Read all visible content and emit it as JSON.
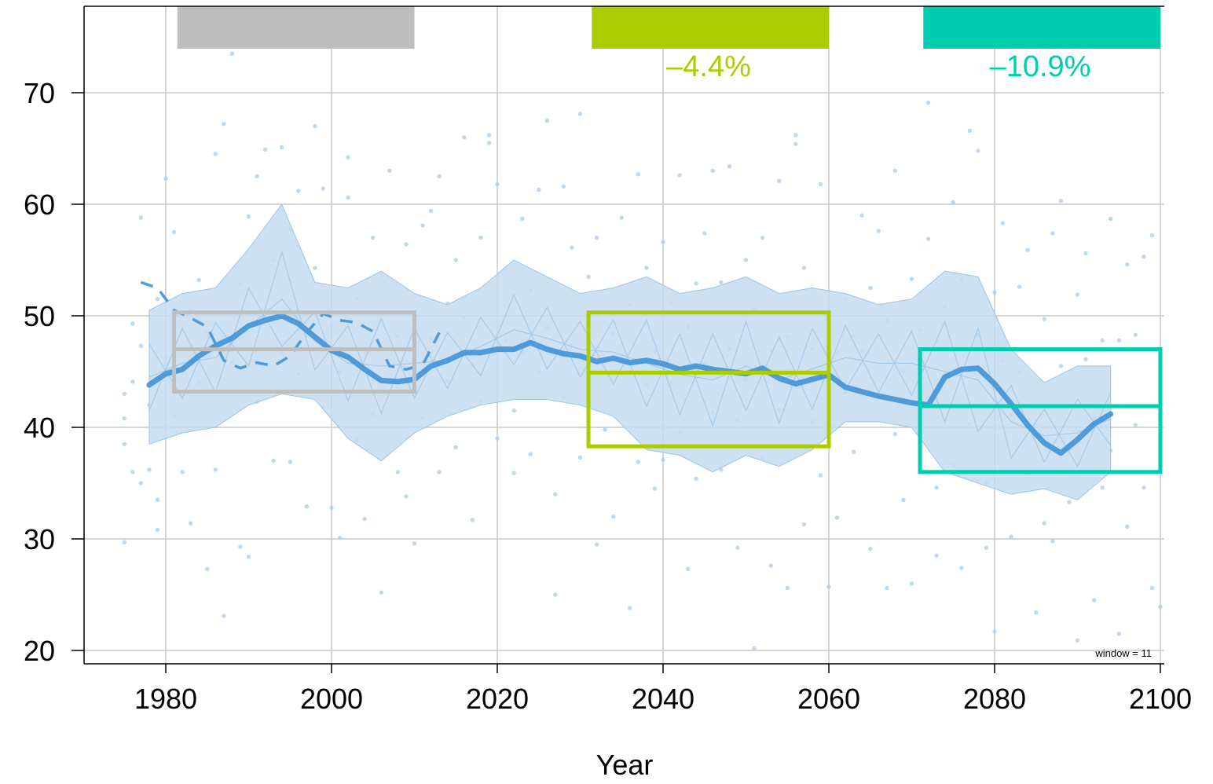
{
  "chart_data": {
    "type": "line",
    "xlabel": "Year",
    "ylabel": "",
    "xlim": [
      1970,
      2100
    ],
    "ylim": [
      19.5,
      78
    ],
    "x_ticks": [
      1980,
      2000,
      2020,
      2040,
      2060,
      2080,
      2100
    ],
    "y_ticks": [
      20,
      30,
      40,
      50,
      60,
      70
    ],
    "grid": true,
    "window_label": "window =  11",
    "colors": {
      "series": "#4f9bd9",
      "band": "#c6dcf0",
      "points": "#a9cbea",
      "baseline": "#bebebe",
      "mid_century": "#aacc00",
      "end_century": "#00cdb0"
    },
    "series": [
      {
        "role": "smoothed",
        "x": [
          1978,
          1980,
          1982,
          1984,
          1986,
          1988,
          1990,
          1992,
          1994,
          1996,
          1998,
          2000,
          2002,
          2004,
          2006,
          2008,
          2010,
          2012,
          2014,
          2016,
          2018,
          2020,
          2022,
          2024,
          2026,
          2028,
          2030,
          2032,
          2034,
          2036,
          2038,
          2040,
          2042,
          2044,
          2046,
          2048,
          2050,
          2052,
          2054,
          2056,
          2058,
          2060,
          2062,
          2064,
          2066,
          2068,
          2070,
          2072,
          2074,
          2076,
          2078,
          2080,
          2082,
          2084,
          2086,
          2088,
          2090,
          2092,
          2094
        ],
        "y": [
          43.8,
          44.8,
          45.2,
          46.4,
          47.3,
          48.0,
          49.1,
          49.6,
          50.0,
          49.3,
          48.1,
          46.9,
          46.3,
          45.2,
          44.2,
          44.1,
          44.3,
          45.5,
          46.0,
          46.7,
          46.7,
          47.0,
          47.0,
          47.6,
          47.0,
          46.6,
          46.4,
          45.9,
          46.2,
          45.8,
          46.0,
          45.7,
          45.2,
          45.5,
          45.2,
          45.0,
          44.8,
          45.3,
          44.4,
          43.9,
          44.3,
          44.7,
          43.6,
          43.2,
          42.8,
          42.5,
          42.2,
          42.0,
          44.5,
          45.2,
          45.3,
          43.9,
          42.1,
          40.2,
          38.6,
          37.7,
          38.9,
          40.3,
          41.2
        ]
      },
      {
        "role": "observed-dashed",
        "x": [
          1977,
          1979,
          1981,
          1983,
          1985,
          1987,
          1989,
          1991,
          1993,
          1995,
          1997,
          1999,
          2001,
          2003,
          2005,
          2007,
          2009,
          2011,
          2013
        ],
        "y": [
          53.0,
          52.5,
          50.5,
          49.8,
          49.0,
          46.0,
          45.3,
          45.8,
          45.5,
          46.4,
          48.5,
          50.2,
          49.6,
          49.4,
          48.6,
          45.5,
          45.2,
          45.6,
          48.5
        ]
      }
    ],
    "band": {
      "x": [
        1978,
        1982,
        1986,
        1990,
        1994,
        1998,
        2002,
        2006,
        2010,
        2014,
        2018,
        2022,
        2026,
        2030,
        2034,
        2038,
        2042,
        2046,
        2050,
        2054,
        2058,
        2062,
        2066,
        2070,
        2074,
        2078,
        2082,
        2086,
        2090,
        2094
      ],
      "upper": [
        50.5,
        52.0,
        52.5,
        56.0,
        60.0,
        53.0,
        52.5,
        54.0,
        52.0,
        51.0,
        52.5,
        55.0,
        53.5,
        52.0,
        52.5,
        53.5,
        52.0,
        52.5,
        53.5,
        52.0,
        52.5,
        52.0,
        51.0,
        51.5,
        54.0,
        53.5,
        47.0,
        44.0,
        45.5,
        45.5
      ],
      "lower": [
        38.5,
        39.5,
        40.0,
        42.0,
        43.0,
        42.5,
        39.0,
        37.0,
        39.5,
        41.0,
        42.0,
        42.5,
        42.5,
        42.0,
        41.0,
        38.0,
        37.5,
        36.0,
        37.5,
        36.5,
        38.0,
        40.5,
        40.5,
        40.0,
        36.0,
        35.0,
        34.0,
        34.5,
        33.5,
        36.0
      ]
    },
    "periods": [
      {
        "name": "baseline",
        "x_range": [
          1981,
          2010
        ],
        "y_range": [
          43.2,
          50.3
        ],
        "median": 47.0,
        "label": ""
      },
      {
        "name": "mid-century",
        "x_range": [
          2031,
          2060
        ],
        "y_range": [
          38.3,
          50.3
        ],
        "median": 44.9,
        "label": "–4.4%"
      },
      {
        "name": "end-of-century",
        "x_range": [
          2071,
          2100
        ],
        "y_range": [
          36.0,
          47.0
        ],
        "median": 41.9,
        "label": "–10.9%"
      }
    ],
    "scatter_points": [
      [
        1975,
        40.8
      ],
      [
        1975,
        43.0
      ],
      [
        1975,
        38.5
      ],
      [
        1975,
        29.7
      ],
      [
        1976,
        49.3
      ],
      [
        1976,
        44.1
      ],
      [
        1976,
        36.0
      ],
      [
        1977,
        58.8
      ],
      [
        1977,
        35.0
      ],
      [
        1977,
        47.3
      ],
      [
        1978,
        36.2
      ],
      [
        1978,
        42.0
      ],
      [
        1979,
        30.8
      ],
      [
        1979,
        51.5
      ],
      [
        1979,
        33.5
      ],
      [
        1980,
        62.3
      ],
      [
        1980,
        46.3
      ],
      [
        1981,
        57.5
      ],
      [
        1981,
        41.0
      ],
      [
        1982,
        36.0
      ],
      [
        1983,
        50.5
      ],
      [
        1983,
        31.4
      ],
      [
        1984,
        44.0
      ],
      [
        1984,
        53.2
      ],
      [
        1985,
        27.3
      ],
      [
        1985,
        48.5
      ],
      [
        1986,
        64.5
      ],
      [
        1986,
        36.2
      ],
      [
        1987,
        67.2
      ],
      [
        1987,
        23.1
      ],
      [
        1988,
        73.5
      ],
      [
        1988,
        45.8
      ],
      [
        1989,
        52.8
      ],
      [
        1989,
        29.3
      ],
      [
        1990,
        28.4
      ],
      [
        1990,
        58.9
      ],
      [
        1991,
        62.5
      ],
      [
        1991,
        42.3
      ],
      [
        1992,
        64.9
      ],
      [
        1992,
        75.8
      ],
      [
        1993,
        37.0
      ],
      [
        1993,
        55.0
      ],
      [
        1994,
        65.1
      ],
      [
        1994,
        46.6
      ],
      [
        1995,
        57.7
      ],
      [
        1995,
        36.9
      ],
      [
        1996,
        61.2
      ],
      [
        1996,
        44.8
      ],
      [
        1997,
        48.3
      ],
      [
        1997,
        32.9
      ],
      [
        1998,
        67.0
      ],
      [
        1998,
        54.3
      ],
      [
        1999,
        41.8
      ],
      [
        1999,
        61.4
      ],
      [
        2000,
        32.8
      ],
      [
        2000,
        49.2
      ],
      [
        2001,
        30.1
      ],
      [
        2001,
        45.0
      ],
      [
        2002,
        64.2
      ],
      [
        2002,
        60.6
      ],
      [
        2003,
        38.9
      ],
      [
        2003,
        51.6
      ],
      [
        2004,
        31.8
      ],
      [
        2004,
        46.7
      ],
      [
        2005,
        57.0
      ],
      [
        2005,
        41.2
      ],
      [
        2006,
        25.2
      ],
      [
        2006,
        53.7
      ],
      [
        2007,
        63.0
      ],
      [
        2007,
        44.0
      ],
      [
        2008,
        48.2
      ],
      [
        2008,
        36.0
      ],
      [
        2009,
        56.4
      ],
      [
        2009,
        33.8
      ],
      [
        2010,
        29.6
      ],
      [
        2010,
        46.1
      ],
      [
        2011,
        58.1
      ],
      [
        2011,
        40.8
      ],
      [
        2012,
        59.4
      ],
      [
        2012,
        48.0
      ],
      [
        2013,
        62.5
      ],
      [
        2013,
        36.0
      ],
      [
        2014,
        51.1
      ],
      [
        2014,
        44.2
      ],
      [
        2015,
        55.0
      ],
      [
        2015,
        38.2
      ],
      [
        2016,
        66.0
      ],
      [
        2016,
        49.8
      ],
      [
        2017,
        31.7
      ],
      [
        2017,
        45.6
      ],
      [
        2018,
        57.0
      ],
      [
        2018,
        42.4
      ],
      [
        2019,
        65.5
      ],
      [
        2019,
        66.2
      ],
      [
        2020,
        61.8
      ],
      [
        2020,
        39.0
      ],
      [
        2021,
        47.8
      ],
      [
        2021,
        54.2
      ],
      [
        2022,
        41.5
      ],
      [
        2022,
        35.9
      ],
      [
        2023,
        58.7
      ],
      [
        2023,
        46.8
      ],
      [
        2024,
        52.3
      ],
      [
        2024,
        37.6
      ],
      [
        2025,
        61.3
      ],
      [
        2025,
        44.9
      ],
      [
        2026,
        67.5
      ],
      [
        2026,
        49.0
      ],
      [
        2027,
        34.0
      ],
      [
        2027,
        25.0
      ],
      [
        2028,
        61.6
      ],
      [
        2028,
        42.7
      ],
      [
        2029,
        56.1
      ],
      [
        2029,
        47.3
      ],
      [
        2030,
        68.1
      ],
      [
        2030,
        37.3
      ],
      [
        2031,
        46.1
      ],
      [
        2031,
        53.5
      ],
      [
        2032,
        57.0
      ],
      [
        2032,
        29.5
      ],
      [
        2033,
        74.9
      ],
      [
        2033,
        39.8
      ],
      [
        2034,
        32.0
      ],
      [
        2034,
        48.4
      ],
      [
        2035,
        58.8
      ],
      [
        2035,
        44.9
      ],
      [
        2036,
        23.8
      ],
      [
        2036,
        51.0
      ],
      [
        2037,
        62.7
      ],
      [
        2037,
        36.9
      ],
      [
        2038,
        43.8
      ],
      [
        2038,
        54.3
      ],
      [
        2039,
        34.5
      ],
      [
        2039,
        46.8
      ],
      [
        2040,
        56.6
      ],
      [
        2040,
        37.1
      ],
      [
        2041,
        51.2
      ],
      [
        2041,
        44.0
      ],
      [
        2042,
        62.6
      ],
      [
        2042,
        39.5
      ],
      [
        2043,
        27.3
      ],
      [
        2043,
        49.0
      ],
      [
        2044,
        52.9
      ],
      [
        2044,
        35.4
      ],
      [
        2045,
        45.7
      ],
      [
        2045,
        57.4
      ],
      [
        2046,
        63.0
      ],
      [
        2046,
        41.3
      ],
      [
        2047,
        53.0
      ],
      [
        2047,
        36.2
      ],
      [
        2048,
        63.4
      ],
      [
        2048,
        47.0
      ],
      [
        2049,
        29.2
      ],
      [
        2049,
        40.6
      ],
      [
        2050,
        55.0
      ],
      [
        2050,
        44.3
      ],
      [
        2051,
        20.2
      ],
      [
        2051,
        50.6
      ],
      [
        2052,
        57.0
      ],
      [
        2052,
        37.2
      ],
      [
        2053,
        27.6
      ],
      [
        2053,
        46.9
      ],
      [
        2054,
        62.1
      ],
      [
        2054,
        41.6
      ],
      [
        2055,
        25.6
      ],
      [
        2055,
        48.1
      ],
      [
        2056,
        66.2
      ],
      [
        2056,
        65.4
      ],
      [
        2057,
        31.3
      ],
      [
        2057,
        54.3
      ],
      [
        2058,
        40.5
      ],
      [
        2058,
        47.0
      ],
      [
        2059,
        61.8
      ],
      [
        2059,
        35.7
      ],
      [
        2060,
        25.7
      ],
      [
        2060,
        49.1
      ],
      [
        2061,
        31.9
      ],
      [
        2061,
        46.8
      ],
      [
        2062,
        51.5
      ],
      [
        2062,
        43.1
      ],
      [
        2063,
        48.2
      ],
      [
        2063,
        37.8
      ],
      [
        2064,
        59.0
      ],
      [
        2064,
        46.9
      ],
      [
        2065,
        29.1
      ],
      [
        2065,
        52.5
      ],
      [
        2066,
        57.6
      ],
      [
        2066,
        42.9
      ],
      [
        2067,
        25.6
      ],
      [
        2067,
        49.6
      ],
      [
        2068,
        63.0
      ],
      [
        2068,
        39.4
      ],
      [
        2069,
        33.5
      ],
      [
        2069,
        45.0
      ],
      [
        2070,
        53.3
      ],
      [
        2070,
        26.0
      ],
      [
        2071,
        48.7
      ],
      [
        2071,
        42.7
      ],
      [
        2072,
        69.1
      ],
      [
        2072,
        56.9
      ],
      [
        2073,
        34.6
      ],
      [
        2073,
        28.5
      ],
      [
        2074,
        50.8
      ],
      [
        2074,
        44.7
      ],
      [
        2075,
        60.2
      ],
      [
        2075,
        36.6
      ],
      [
        2076,
        53.3
      ],
      [
        2076,
        27.4
      ],
      [
        2077,
        66.6
      ],
      [
        2077,
        40.3
      ],
      [
        2078,
        64.8
      ],
      [
        2078,
        48.3
      ],
      [
        2079,
        29.2
      ],
      [
        2079,
        35.0
      ],
      [
        2080,
        21.7
      ],
      [
        2080,
        52.1
      ],
      [
        2081,
        58.3
      ],
      [
        2081,
        46.0
      ],
      [
        2082,
        30.2
      ],
      [
        2082,
        41.1
      ],
      [
        2083,
        52.6
      ],
      [
        2083,
        44.9
      ],
      [
        2084,
        55.9
      ],
      [
        2084,
        35.9
      ],
      [
        2085,
        23.4
      ],
      [
        2085,
        40.2
      ],
      [
        2086,
        49.7
      ],
      [
        2086,
        31.4
      ],
      [
        2087,
        57.4
      ],
      [
        2087,
        29.8
      ],
      [
        2088,
        60.3
      ],
      [
        2088,
        45.5
      ],
      [
        2089,
        33.3
      ],
      [
        2089,
        38.0
      ],
      [
        2090,
        51.9
      ],
      [
        2090,
        20.9
      ],
      [
        2091,
        46.1
      ],
      [
        2091,
        55.6
      ],
      [
        2092,
        24.5
      ],
      [
        2092,
        40.8
      ],
      [
        2093,
        34.6
      ],
      [
        2093,
        47.8
      ],
      [
        2094,
        58.7
      ],
      [
        2094,
        37.9
      ],
      [
        2095,
        47.8
      ],
      [
        2095,
        21.5
      ],
      [
        2096,
        54.6
      ],
      [
        2096,
        31.1
      ],
      [
        2097,
        40.2
      ],
      [
        2097,
        48.3
      ],
      [
        2098,
        55.3
      ],
      [
        2098,
        34.6
      ],
      [
        2099,
        25.6
      ],
      [
        2099,
        57.2
      ],
      [
        2100,
        23.9
      ],
      [
        2100,
        46.5
      ]
    ]
  }
}
